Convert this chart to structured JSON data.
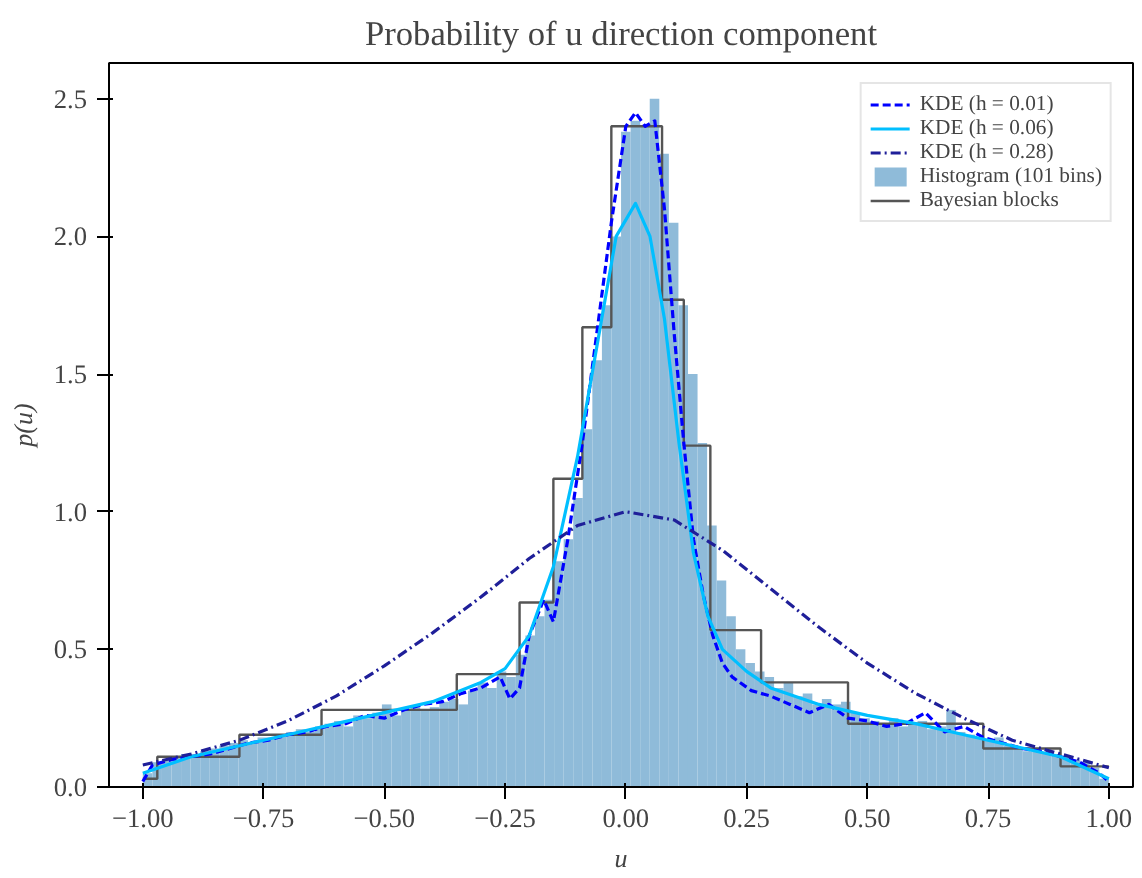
{
  "chart_data": {
    "type": "histogram",
    "title": "Probability of u direction component",
    "xlabel": "u",
    "ylabel": "p(u)",
    "xlim": [
      -1.07,
      1.05
    ],
    "ylim": [
      0,
      2.63
    ],
    "xticks": [
      {
        "value": -1,
        "label": "−1.00"
      },
      {
        "value": -0.75,
        "label": "−0.75"
      },
      {
        "value": -0.5,
        "label": "−0.50"
      },
      {
        "value": -0.25,
        "label": "−0.25"
      },
      {
        "value": 0,
        "label": "0.00"
      },
      {
        "value": 0.25,
        "label": "0.25"
      },
      {
        "value": 0.5,
        "label": "0.50"
      },
      {
        "value": 0.75,
        "label": "0.75"
      },
      {
        "value": 1,
        "label": "1.00"
      }
    ],
    "yticks": [
      {
        "value": 0,
        "label": "0.0"
      },
      {
        "value": 0.5,
        "label": "0.5"
      },
      {
        "value": 1,
        "label": "1.0"
      },
      {
        "value": 1.5,
        "label": "1.5"
      },
      {
        "value": 2,
        "label": "2.0"
      },
      {
        "value": 2.5,
        "label": "2.5"
      }
    ],
    "grid": false,
    "legend": "top right",
    "series": [
      {
        "name": "Histogram (101 bins)",
        "color": "#8fbbd9",
        "bins": [
          -1.0,
          -0.9802,
          -0.9604,
          -0.9406,
          -0.9208,
          -0.901,
          -0.8812,
          -0.8614,
          -0.8416,
          -0.8218,
          -0.802,
          -0.7822,
          -0.7624,
          -0.7426,
          -0.7228,
          -0.703,
          -0.6832,
          -0.6634,
          -0.6436,
          -0.6238,
          -0.604,
          -0.5842,
          -0.5644,
          -0.5446,
          -0.5248,
          -0.505,
          -0.4851,
          -0.4653,
          -0.4455,
          -0.4257,
          -0.4059,
          -0.3861,
          -0.3663,
          -0.3465,
          -0.3267,
          -0.3069,
          -0.2871,
          -0.2673,
          -0.2475,
          -0.2277,
          -0.2079,
          -0.1881,
          -0.1683,
          -0.1485,
          -0.1287,
          -0.1089,
          -0.0891,
          -0.0693,
          -0.0495,
          -0.0297,
          -0.0099,
          0.0099,
          0.0297,
          0.0495,
          0.0693,
          0.0891,
          0.1089,
          0.1287,
          0.1485,
          0.1683,
          0.1881,
          0.2079,
          0.2277,
          0.2475,
          0.2673,
          0.2871,
          0.3069,
          0.3267,
          0.3465,
          0.3663,
          0.3861,
          0.4059,
          0.4257,
          0.4455,
          0.4653,
          0.4851,
          0.505,
          0.5248,
          0.5446,
          0.5644,
          0.5842,
          0.604,
          0.6238,
          0.6436,
          0.6634,
          0.6832,
          0.703,
          0.7228,
          0.7426,
          0.7624,
          0.7822,
          0.802,
          0.8218,
          0.8416,
          0.8614,
          0.8812,
          0.901,
          0.9208,
          0.9406,
          0.9604,
          0.9802,
          1.0
        ],
        "values": [
          0.05,
          0.09,
          0.1,
          0.11,
          0.12,
          0.12,
          0.13,
          0.14,
          0.15,
          0.16,
          0.17,
          0.16,
          0.18,
          0.18,
          0.19,
          0.2,
          0.21,
          0.2,
          0.22,
          0.23,
          0.24,
          0.22,
          0.26,
          0.25,
          0.27,
          0.3,
          0.26,
          0.28,
          0.29,
          0.28,
          0.29,
          0.31,
          0.32,
          0.3,
          0.35,
          0.38,
          0.36,
          0.42,
          0.4,
          0.48,
          0.55,
          0.62,
          0.68,
          0.82,
          0.9,
          1.05,
          1.3,
          1.55,
          1.75,
          2.0,
          2.38,
          2.42,
          2.4,
          2.5,
          2.3,
          2.05,
          1.75,
          1.5,
          1.25,
          0.95,
          0.75,
          0.62,
          0.5,
          0.45,
          0.42,
          0.4,
          0.36,
          0.38,
          0.33,
          0.34,
          0.3,
          0.32,
          0.3,
          0.31,
          0.27,
          0.25,
          0.24,
          0.23,
          0.25,
          0.22,
          0.23,
          0.24,
          0.21,
          0.22,
          0.28,
          0.2,
          0.19,
          0.18,
          0.17,
          0.18,
          0.15,
          0.14,
          0.13,
          0.13,
          0.12,
          0.12,
          0.11,
          0.1,
          0.09,
          0.07,
          0.03
        ]
      },
      {
        "type": "step",
        "name": "Bayesian blocks",
        "color": "#555555",
        "x": [
          -1.0,
          -0.97,
          -0.8,
          -0.63,
          -0.35,
          -0.22,
          -0.15,
          -0.09,
          -0.03,
          0.075,
          0.12,
          0.175,
          0.28,
          0.46,
          0.74,
          0.9,
          1.0
        ],
        "values": [
          0.03,
          0.11,
          0.19,
          0.28,
          0.41,
          0.67,
          1.12,
          1.67,
          2.4,
          1.77,
          1.24,
          0.57,
          0.38,
          0.23,
          0.14,
          0.075,
          0.075
        ]
      },
      {
        "type": "line",
        "name": "KDE (h = 0.01)",
        "color": "#0000ff",
        "line_style": "dashed",
        "x": [
          -1.0,
          -0.98,
          -0.94,
          -0.9,
          -0.86,
          -0.82,
          -0.78,
          -0.74,
          -0.7,
          -0.66,
          -0.62,
          -0.58,
          -0.54,
          -0.5,
          -0.46,
          -0.42,
          -0.38,
          -0.34,
          -0.3,
          -0.26,
          -0.24,
          -0.22,
          -0.2,
          -0.17,
          -0.15,
          -0.12,
          -0.09,
          -0.06,
          -0.03,
          0.0,
          0.02,
          0.04,
          0.06,
          0.08,
          0.1,
          0.12,
          0.14,
          0.16,
          0.18,
          0.2,
          0.22,
          0.26,
          0.3,
          0.34,
          0.38,
          0.42,
          0.46,
          0.5,
          0.54,
          0.58,
          0.62,
          0.66,
          0.7,
          0.74,
          0.78,
          0.82,
          0.86,
          0.9,
          0.94,
          0.98,
          1.0
        ],
        "values": [
          0.02,
          0.08,
          0.1,
          0.11,
          0.12,
          0.14,
          0.16,
          0.17,
          0.19,
          0.2,
          0.22,
          0.23,
          0.26,
          0.25,
          0.28,
          0.3,
          0.31,
          0.34,
          0.36,
          0.4,
          0.32,
          0.36,
          0.55,
          0.68,
          0.6,
          0.9,
          1.25,
          1.65,
          2.05,
          2.4,
          2.45,
          2.4,
          2.42,
          2.1,
          1.65,
          1.25,
          0.9,
          0.7,
          0.55,
          0.45,
          0.4,
          0.35,
          0.33,
          0.3,
          0.27,
          0.3,
          0.25,
          0.24,
          0.22,
          0.23,
          0.27,
          0.2,
          0.22,
          0.18,
          0.16,
          0.14,
          0.13,
          0.11,
          0.09,
          0.05,
          0.02
        ]
      },
      {
        "type": "line",
        "name": "KDE (h = 0.06)",
        "color": "#00bfff",
        "line_style": "solid",
        "x": [
          -1.0,
          -0.9,
          -0.8,
          -0.7,
          -0.6,
          -0.5,
          -0.4,
          -0.3,
          -0.25,
          -0.2,
          -0.15,
          -0.1,
          -0.05,
          -0.02,
          0.02,
          0.05,
          0.08,
          0.11,
          0.14,
          0.17,
          0.2,
          0.25,
          0.3,
          0.4,
          0.5,
          0.6,
          0.7,
          0.8,
          0.9,
          1.0
        ],
        "values": [
          0.05,
          0.11,
          0.15,
          0.19,
          0.23,
          0.27,
          0.31,
          0.38,
          0.43,
          0.55,
          0.8,
          1.2,
          1.7,
          2.0,
          2.12,
          2.0,
          1.7,
          1.25,
          0.85,
          0.62,
          0.5,
          0.42,
          0.36,
          0.3,
          0.26,
          0.23,
          0.19,
          0.15,
          0.11,
          0.03
        ]
      },
      {
        "type": "line",
        "name": "KDE (h = 0.28)",
        "color": "#1f1f99",
        "line_style": "dashdot",
        "x": [
          -1.0,
          -0.9,
          -0.8,
          -0.7,
          -0.6,
          -0.5,
          -0.4,
          -0.3,
          -0.2,
          -0.1,
          0.0,
          0.1,
          0.2,
          0.3,
          0.4,
          0.5,
          0.6,
          0.7,
          0.8,
          0.9,
          1.0
        ],
        "values": [
          0.08,
          0.12,
          0.17,
          0.24,
          0.33,
          0.44,
          0.56,
          0.69,
          0.83,
          0.95,
          1.0,
          0.97,
          0.86,
          0.72,
          0.58,
          0.45,
          0.34,
          0.25,
          0.17,
          0.12,
          0.07
        ]
      }
    ]
  }
}
